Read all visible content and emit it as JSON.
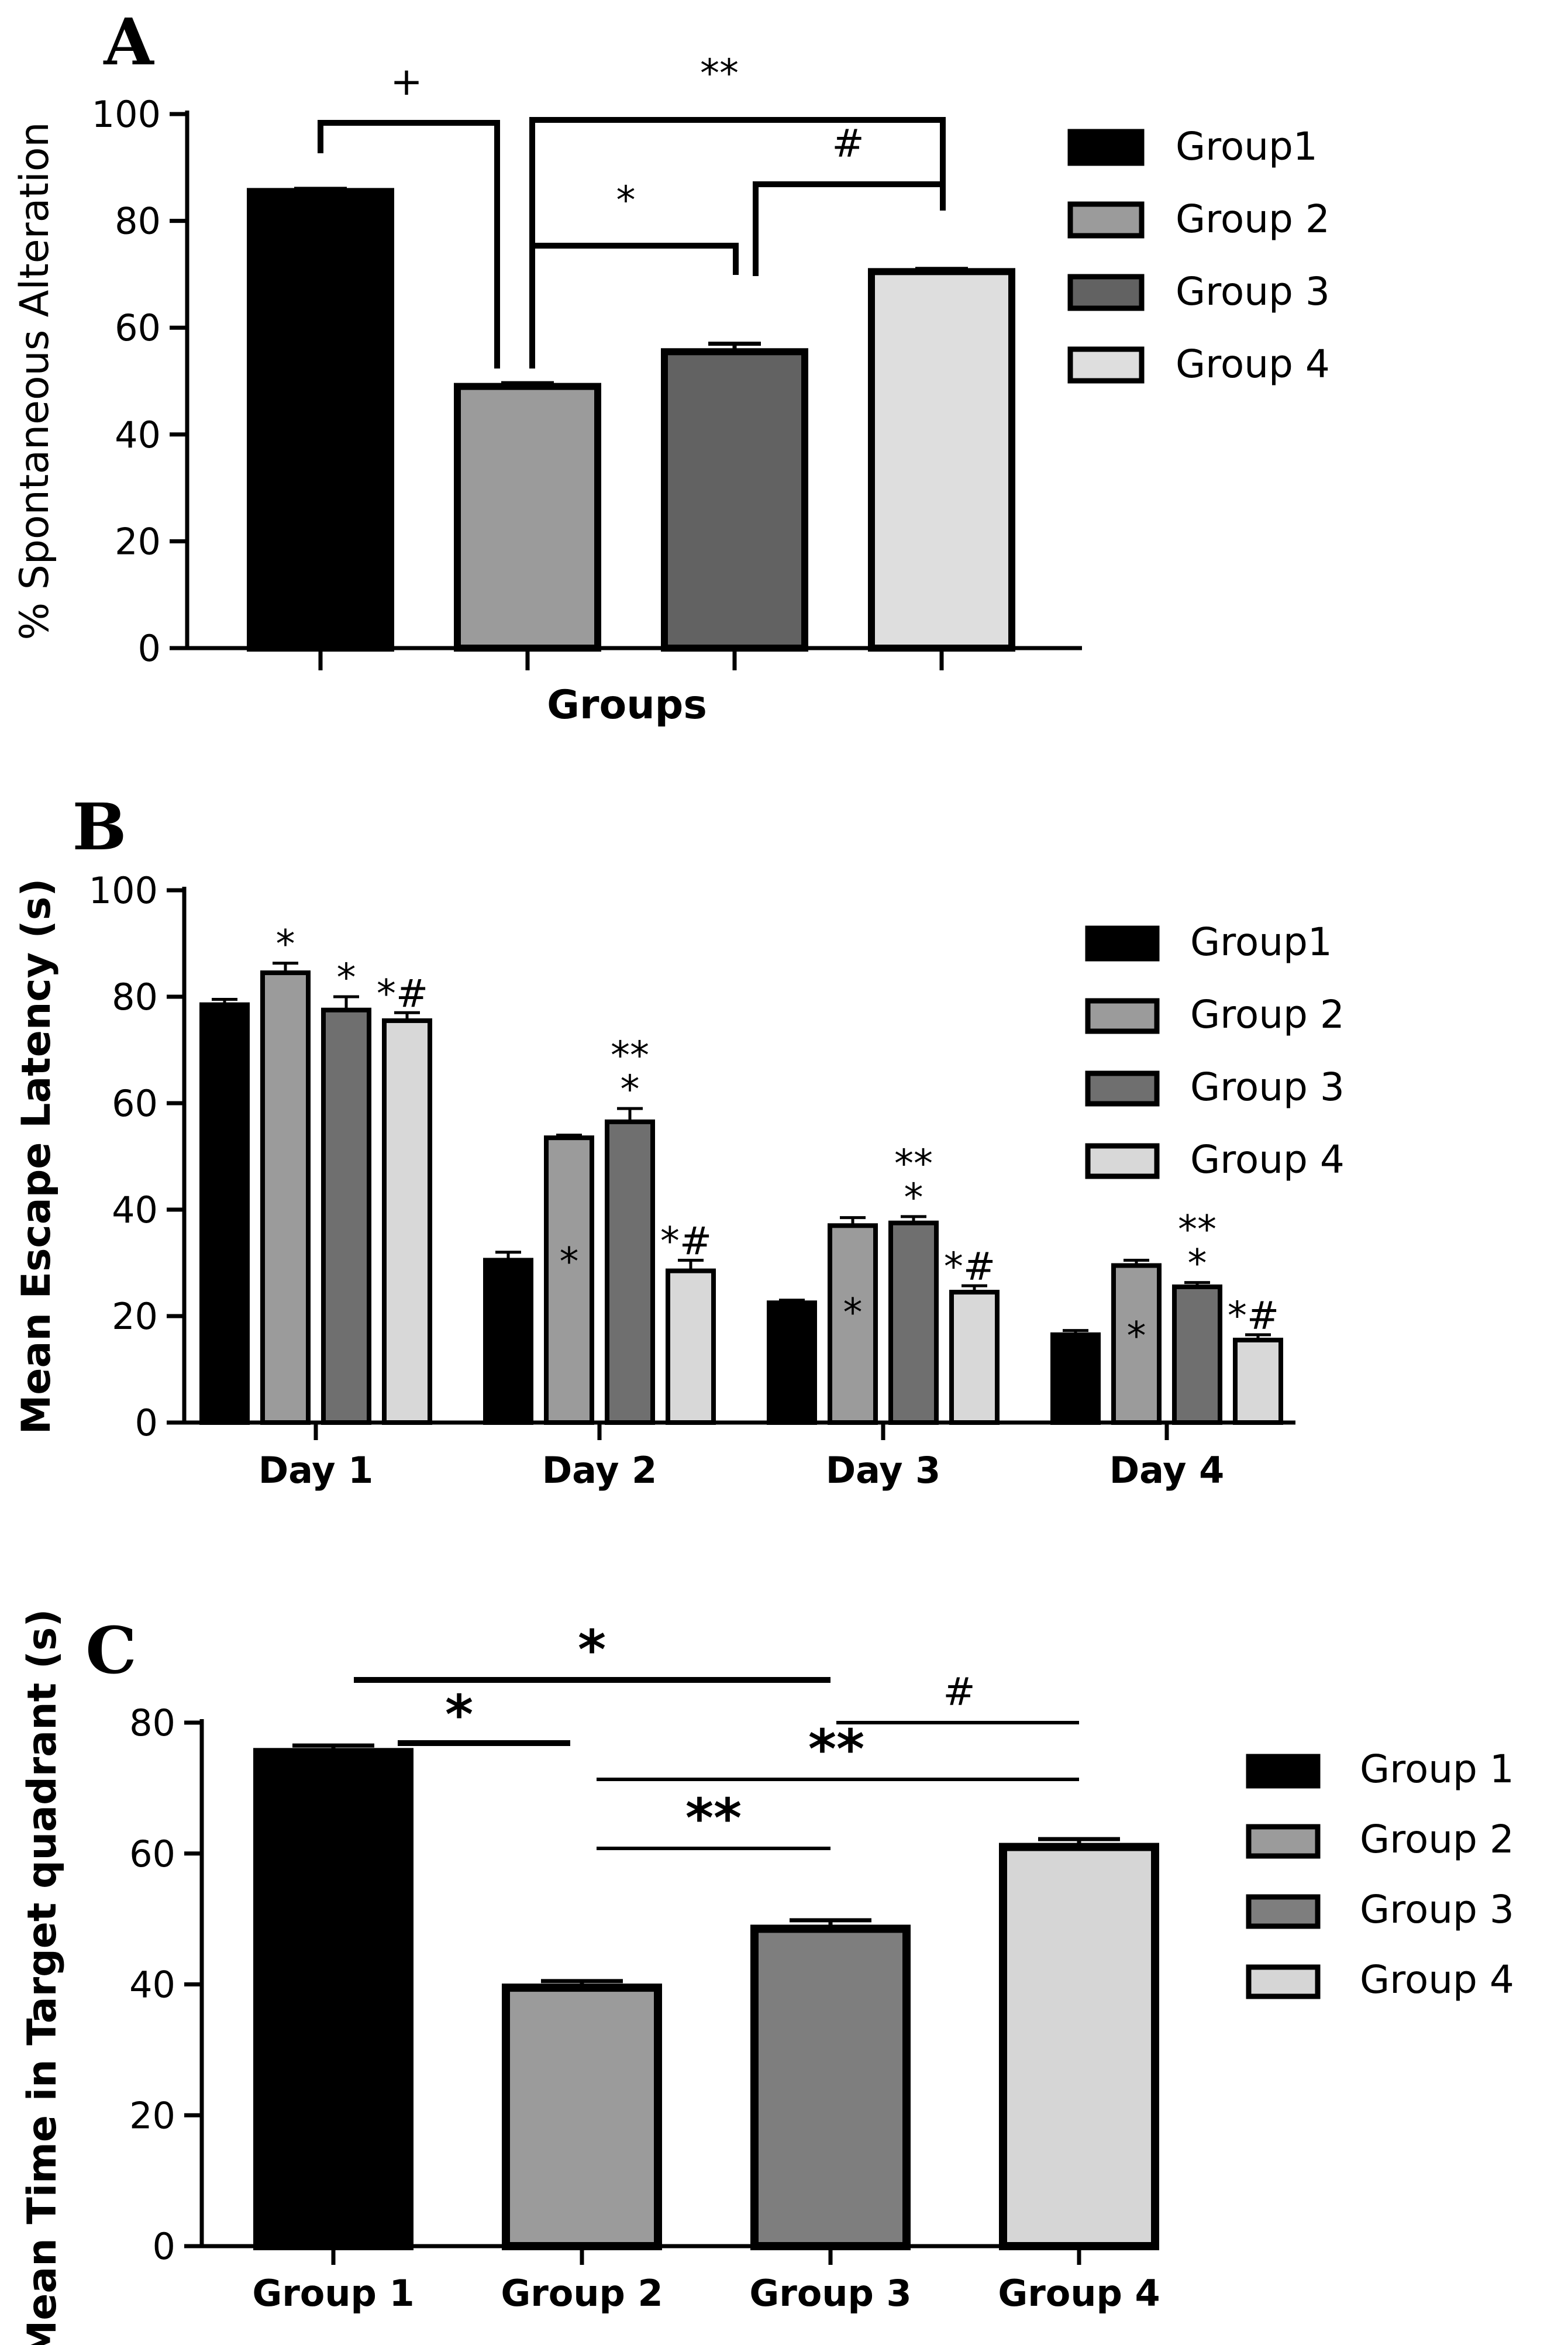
{
  "chart_data": [
    {
      "panel": "A",
      "type": "bar",
      "title": "",
      "xlabel": "Groups",
      "ylabel": "% Spontaneous Alteration",
      "ylim": [
        0,
        100
      ],
      "yticks": [
        0,
        20,
        40,
        60,
        80,
        100
      ],
      "categories": [
        "Group1",
        "Group 2",
        "Group 3",
        "Group 4"
      ],
      "values": [
        85.5,
        49,
        55.5,
        70.5
      ],
      "errors": [
        0.5,
        0.6,
        1.5,
        0.5
      ],
      "colors": [
        "#000000",
        "#9b9b9b",
        "#626262",
        "#dedede"
      ],
      "legend": {
        "position": "right",
        "entries": [
          "Group1",
          "Group 2",
          "Group 3",
          "Group 4"
        ]
      },
      "annotations": [
        {
          "text": "+",
          "from": 0,
          "to": 1
        },
        {
          "text": "**",
          "from": 1,
          "to": 3
        },
        {
          "text": "*",
          "from": 1,
          "to": 2
        },
        {
          "text": "#",
          "from": 2,
          "to": 3
        }
      ]
    },
    {
      "panel": "B",
      "type": "bar",
      "title": "",
      "xlabel": "",
      "ylabel": "Mean Escape Latency (s)",
      "ylim": [
        0,
        100
      ],
      "yticks": [
        0,
        20,
        40,
        60,
        80,
        100
      ],
      "categories": [
        "Day 1",
        "Day 2",
        "Day 3",
        "Day 4"
      ],
      "series": [
        {
          "name": "Group1",
          "color": "#000000",
          "values": [
            78.5,
            30.5,
            22.5,
            16.5
          ],
          "errors": [
            1,
            1.5,
            0.5,
            0.8
          ],
          "labels": [
            "",
            "",
            "",
            ""
          ]
        },
        {
          "name": "Group 2",
          "color": "#9b9b9b",
          "values": [
            84.5,
            53.5,
            37,
            29.5
          ],
          "errors": [
            1.8,
            0.5,
            1.5,
            1
          ],
          "labels": [
            "*",
            "*",
            "*",
            "*"
          ]
        },
        {
          "name": "Group 3",
          "color": "#6f6f6f",
          "values": [
            77.5,
            56.5,
            37.5,
            25.5
          ],
          "errors": [
            2.5,
            2.5,
            1.2,
            0.8
          ],
          "labels": [
            "*",
            "**\n*",
            "**\n*",
            "**\n*"
          ]
        },
        {
          "name": "Group 4",
          "color": "#d8d8d8",
          "values": [
            75.5,
            28.5,
            24.5,
            15.5
          ],
          "errors": [
            1.5,
            2,
            1.2,
            1
          ],
          "labels": [
            "*#",
            "*#",
            "*#",
            "*#"
          ]
        }
      ],
      "legend": {
        "position": "right",
        "entries": [
          "Group1",
          "Group 2",
          "Group 3",
          "Group 4"
        ]
      }
    },
    {
      "panel": "C",
      "type": "bar",
      "title": "",
      "xlabel": "",
      "ylabel": "Mean Time in Target quadrant  (s)",
      "ylim": [
        0,
        80
      ],
      "yticks": [
        0,
        20,
        40,
        60,
        80
      ],
      "categories": [
        "Group 1",
        "Group 2",
        "Group 3",
        "Group 4"
      ],
      "values": [
        75.5,
        39.5,
        48.5,
        61
      ],
      "errors": [
        1,
        1,
        1.3,
        1.2
      ],
      "colors": [
        "#000000",
        "#9b9b9b",
        "#7e7e7e",
        "#d6d6d6"
      ],
      "legend": {
        "position": "right",
        "entries": [
          "Group 1",
          "Group 2",
          "Group 3",
          "Group 4"
        ]
      },
      "annotations": [
        {
          "text": "*",
          "from": 0,
          "to": 2
        },
        {
          "text": "*",
          "from": 0,
          "to": 1
        },
        {
          "text": "#",
          "from": 2,
          "to": 3
        },
        {
          "text": "**",
          "from": 1,
          "to": 3
        },
        {
          "text": "**",
          "from": 1,
          "to": 2
        }
      ]
    }
  ]
}
